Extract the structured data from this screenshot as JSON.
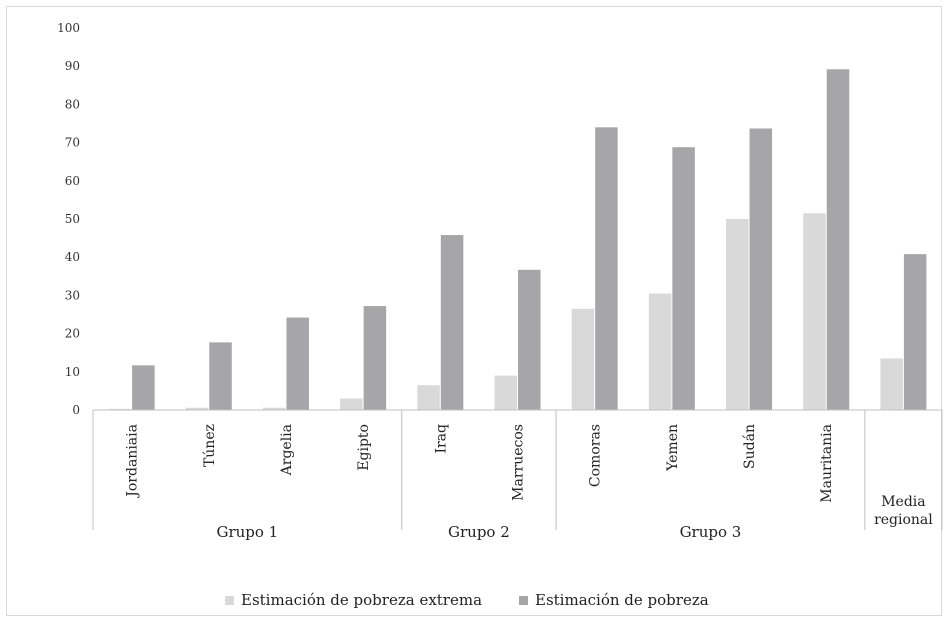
{
  "chart_data": {
    "type": "bar",
    "title": "",
    "xlabel": "",
    "ylabel": "",
    "ylim": [
      0,
      100
    ],
    "yticks": [
      "0",
      "10",
      "20",
      "30",
      "40",
      "50",
      "60",
      "70",
      "80",
      "90",
      "100"
    ],
    "categories": [
      "Jordaniaia",
      "Túnez",
      "Argelia",
      "Egipto",
      "Iraq",
      "Marruecos",
      "Comoras",
      "Yemen",
      "Sudán",
      "Mauritania",
      "Media regional"
    ],
    "groups": [
      {
        "label": "Grupo 1",
        "count": 4
      },
      {
        "label": "Grupo 2",
        "count": 2
      },
      {
        "label": "Grupo 3",
        "count": 4
      }
    ],
    "series": [
      {
        "name": "Estimación de pobreza extrema",
        "color": "#d9d9d9",
        "values": [
          0.3,
          0.6,
          0.6,
          3,
          6.5,
          9,
          26.5,
          30.5,
          50,
          51.5,
          13.5
        ]
      },
      {
        "name": "Estimación de pobreza",
        "color": "#a6a6a8",
        "values": [
          11.7,
          17.7,
          24.2,
          27.2,
          45.8,
          36.7,
          74,
          68.8,
          73.7,
          89.2,
          40.8
        ]
      }
    ],
    "legend_position": "bottom",
    "grid": false
  }
}
